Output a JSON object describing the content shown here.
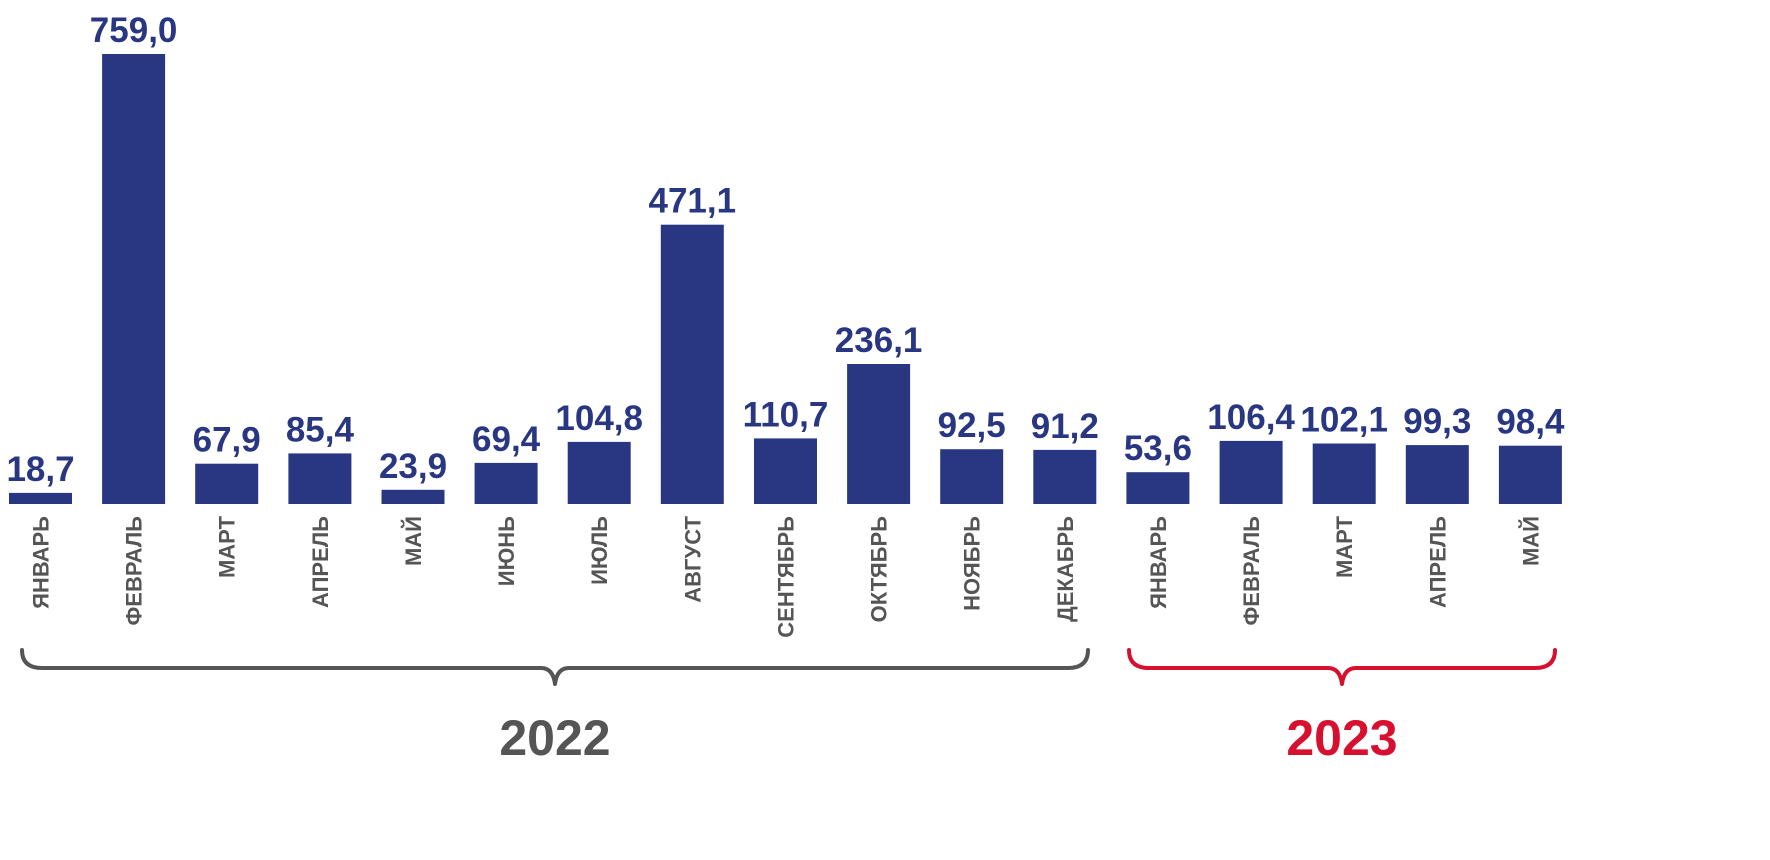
{
  "chart_data": {
    "type": "bar",
    "title": "",
    "xlabel": "",
    "ylabel": "",
    "ylim": [
      0,
      800
    ],
    "grid": false,
    "legend": "none",
    "categories": [
      "ЯНВАРЬ",
      "ФЕВРАЛЬ",
      "МАРТ",
      "АПРЕЛЬ",
      "МАЙ",
      "ИЮНЬ",
      "ИЮЛЬ",
      "АВГУСТ",
      "СЕНТЯБРЬ",
      "ОКТЯБРЬ",
      "НОЯБРЬ",
      "ДЕКАБРЬ",
      "ЯНВАРЬ",
      "ФЕВРАЛЬ",
      "МАРТ",
      "АПРЕЛЬ",
      "МАЙ"
    ],
    "values": [
      18.7,
      759.0,
      67.9,
      85.4,
      23.9,
      69.4,
      104.8,
      471.1,
      110.7,
      236.1,
      92.5,
      91.2,
      53.6,
      106.4,
      102.1,
      99.3,
      98.4
    ],
    "value_labels": [
      "18,7",
      "759,0",
      "67,9",
      "85,4",
      "23,9",
      "69,4",
      "104,8",
      "471,1",
      "110,7",
      "236,1",
      "92,5",
      "91,2",
      "53,6",
      "106,4",
      "102,1",
      "99,3",
      "98,4"
    ],
    "groups": [
      {
        "label": "2022",
        "start": 0,
        "end": 11,
        "color": "#555555"
      },
      {
        "label": "2023",
        "start": 12,
        "end": 16,
        "color": "#d7102f"
      }
    ],
    "colors": {
      "bar": "#293681",
      "value_label": "#293681",
      "category_label": "#555555"
    }
  }
}
